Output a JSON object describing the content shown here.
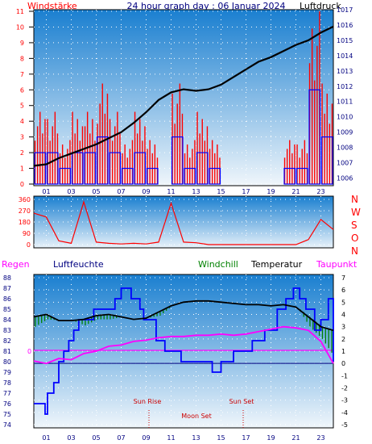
{
  "header": {
    "left_title": "Windstärke",
    "center_title": "24 hour graph day : 06 Januar 2024",
    "right_title": "Luftdruck"
  },
  "lower_header": {
    "regen": "Regen",
    "luftfeuchte": "Luftfeuchte",
    "windchill": "Windchill",
    "temperatur": "Temperatur",
    "taupunkt": "Taupunkt"
  },
  "compass_labels": [
    "N",
    "W",
    "S",
    "O",
    "N"
  ],
  "annotations": {
    "sun_rise": "Sun Rise",
    "sun_set": "Sun Set",
    "moon_set": "Moon Set",
    "regen_zero": "0"
  },
  "colors": {
    "sky_top": "#1a7fd0",
    "sky_bottom": "#f0f6fb",
    "wind_gust": "#ff0000",
    "wind_avg": "#0000ff",
    "pressure": "#000000",
    "temperature": "#000000",
    "windchill": "#008000",
    "dewpoint": "#ff00ff",
    "humidity": "#0000ff",
    "label_red": "#ff0000",
    "label_blue": "#000080"
  },
  "chart_data": [
    {
      "type": "line",
      "panel": "wind-pressure",
      "x_ticks": [
        "01",
        "03",
        "05",
        "07",
        "09",
        "11",
        "13",
        "15",
        "17",
        "19",
        "21",
        "23"
      ],
      "left_axis": {
        "ticks": [
          0,
          1,
          2,
          3,
          4,
          5,
          6,
          7,
          8,
          9,
          10,
          11
        ],
        "ylim": [
          0,
          11
        ]
      },
      "right_axis": {
        "ticks": [
          1006,
          1007,
          1008,
          1009,
          1010,
          1011,
          1012,
          1013,
          1014,
          1015,
          1016,
          1017
        ],
        "ylim": [
          1005.5,
          1017
        ]
      },
      "series": [
        {
          "name": "Luftdruck",
          "axis": "right",
          "x": [
            0,
            1,
            2,
            3,
            4,
            5,
            6,
            7,
            8,
            9,
            10,
            11,
            12,
            13,
            14,
            15,
            16,
            17,
            18,
            19,
            20,
            21,
            22,
            23,
            24
          ],
          "values": [
            1006.8,
            1006.9,
            1007.3,
            1007.6,
            1007.9,
            1008.2,
            1008.6,
            1009.0,
            1009.6,
            1010.3,
            1011.1,
            1011.6,
            1011.8,
            1011.7,
            1011.8,
            1012.1,
            1012.6,
            1013.1,
            1013.6,
            1013.9,
            1014.3,
            1014.7,
            1015.0,
            1015.5,
            1015.9
          ]
        },
        {
          "name": "Windstärke",
          "axis": "left",
          "x": [
            0,
            1,
            2,
            3,
            4,
            5,
            6,
            7,
            8,
            9,
            10,
            11,
            12,
            13,
            14,
            15,
            16,
            17,
            18,
            19,
            20,
            21,
            22,
            23,
            24
          ],
          "values": [
            2,
            2,
            1,
            2,
            2,
            3,
            2,
            1,
            2,
            1,
            0,
            3,
            1,
            2,
            1,
            0,
            0,
            0,
            0,
            0,
            1,
            1,
            6,
            3,
            5
          ]
        }
      ]
    },
    {
      "type": "line",
      "panel": "wind-direction",
      "y_ticks": [
        0,
        90,
        180,
        270,
        360
      ],
      "ylim": [
        0,
        360
      ],
      "x": [
        0,
        1,
        2,
        3,
        4,
        5,
        6,
        7,
        8,
        9,
        10,
        11,
        12,
        13,
        14,
        15,
        16,
        17,
        18,
        19,
        20,
        21,
        22,
        23,
        24
      ],
      "values": [
        250,
        220,
        30,
        10,
        340,
        20,
        10,
        5,
        10,
        5,
        20,
        330,
        20,
        15,
        0,
        0,
        0,
        0,
        0,
        0,
        0,
        0,
        40,
        200,
        120
      ]
    },
    {
      "type": "line",
      "panel": "temperature-humidity",
      "x_ticks": [
        "01",
        "03",
        "05",
        "07",
        "09",
        "11",
        "13",
        "15",
        "17",
        "19",
        "21",
        "23"
      ],
      "left_axis": {
        "label": "Luftfeuchte",
        "ticks": [
          74,
          75,
          76,
          77,
          78,
          79,
          80,
          81,
          82,
          83,
          84,
          85,
          86,
          87,
          88
        ],
        "ylim": [
          74,
          88
        ]
      },
      "right_axis": {
        "label": "Temperatur",
        "ticks": [
          -5,
          -4,
          -3,
          -2,
          -1,
          0,
          1,
          2,
          3,
          4,
          5,
          6,
          7
        ],
        "ylim": [
          -5,
          7
        ]
      },
      "series": [
        {
          "name": "Temperatur",
          "axis": "right",
          "x": [
            0,
            1,
            2,
            3,
            4,
            5,
            6,
            7,
            8,
            9,
            10,
            11,
            12,
            13,
            14,
            15,
            16,
            17,
            18,
            19,
            20,
            21,
            22,
            23,
            24
          ],
          "values": [
            3.8,
            4.0,
            3.5,
            3.5,
            3.6,
            3.9,
            4.0,
            3.8,
            3.6,
            3.7,
            4.2,
            4.7,
            5.0,
            5.1,
            5.1,
            5.0,
            4.9,
            4.8,
            4.8,
            4.7,
            4.8,
            4.6,
            3.8,
            3.0,
            2.7
          ]
        },
        {
          "name": "Windchill",
          "axis": "right",
          "x": [
            0,
            1,
            2,
            3,
            4,
            5,
            6,
            7,
            8,
            9,
            10,
            11,
            12,
            13,
            14,
            15,
            16,
            17,
            18,
            19,
            20,
            21,
            22,
            23,
            24
          ],
          "values": [
            3.0,
            3.6,
            3.5,
            3.5,
            3.1,
            3.6,
            3.6,
            3.8,
            3.6,
            3.7,
            3.9,
            4.7,
            5.0,
            5.1,
            5.1,
            5.0,
            4.9,
            4.8,
            4.8,
            4.7,
            4.8,
            4.6,
            3.0,
            2.0,
            0.5
          ]
        },
        {
          "name": "Taupunkt",
          "axis": "right",
          "x": [
            0,
            1,
            2,
            3,
            4,
            5,
            6,
            7,
            8,
            9,
            10,
            11,
            12,
            13,
            14,
            15,
            16,
            17,
            18,
            19,
            20,
            21,
            22,
            23,
            24
          ],
          "values": [
            0.2,
            0.0,
            0.4,
            0.3,
            0.8,
            1.0,
            1.4,
            1.5,
            1.8,
            1.9,
            2.1,
            2.2,
            2.2,
            2.3,
            2.3,
            2.4,
            2.3,
            2.4,
            2.6,
            2.8,
            3.0,
            2.9,
            2.7,
            1.8,
            0.0
          ]
        },
        {
          "name": "Luftfeuchte",
          "axis": "left",
          "x": [
            0,
            0.9,
            1.1,
            1.6,
            2,
            2.4,
            2.8,
            3.2,
            3.6,
            4.8,
            5.5,
            6.5,
            7,
            7.8,
            8.5,
            8.8,
            9.8,
            10.5,
            11.8,
            13,
            14.3,
            15,
            16,
            17.5,
            18.5,
            19.5,
            20.2,
            20.8,
            21.3,
            21.8,
            22.5,
            23,
            23.6,
            24
          ],
          "values": [
            76,
            75,
            77,
            78,
            80,
            81,
            82,
            83,
            84,
            85,
            85,
            86,
            87,
            86,
            85,
            84,
            82,
            81,
            80,
            80,
            79,
            80,
            81,
            82,
            83,
            85,
            86,
            87,
            86,
            85,
            83,
            84,
            86,
            80
          ]
        }
      ]
    }
  ]
}
